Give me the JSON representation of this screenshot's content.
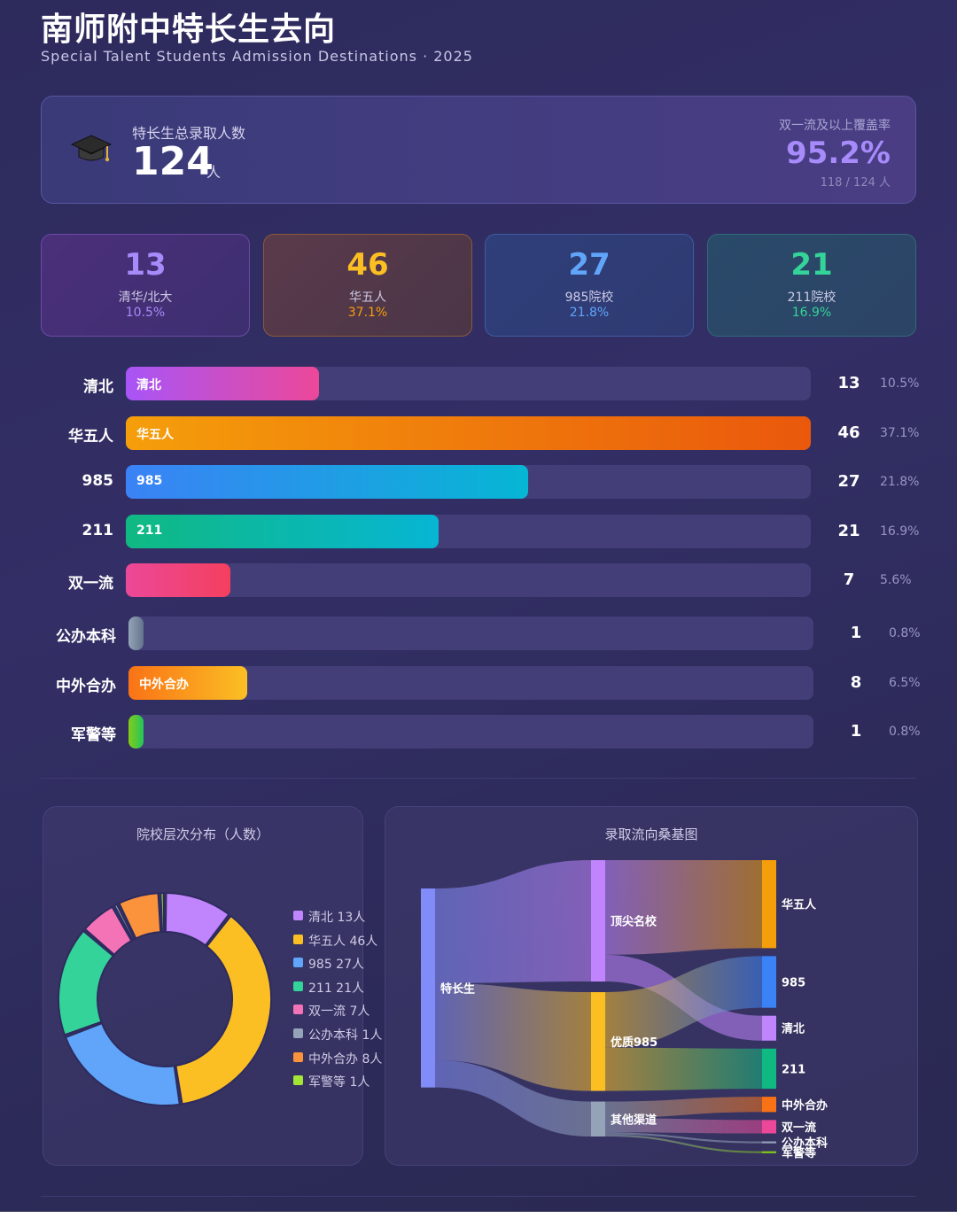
{
  "header": {
    "title": "南师附中特长生去向",
    "subtitle": "Special Talent Students Admission Destinations · 2025"
  },
  "summary": {
    "icon": "graduation-cap-icon",
    "total_label": "特长生总录取人数",
    "total_value": "124",
    "total_unit": "人",
    "coverage_label": "双一流及以上覆盖率",
    "coverage_value": "95.2%",
    "coverage_sub": "118 / 124 人"
  },
  "stats": [
    {
      "num": "13",
      "label": "清华/北大",
      "pct": "10.5%",
      "color": "#a78bfa"
    },
    {
      "num": "46",
      "label": "华五人",
      "pct": "37.1%",
      "color": "#fbbf24"
    },
    {
      "num": "27",
      "label": "985院校",
      "pct": "21.8%",
      "color": "#60a5fa"
    },
    {
      "num": "21",
      "label": "211院校",
      "pct": "16.9%",
      "color": "#34d399"
    }
  ],
  "chart_data": [
    {
      "type": "bar",
      "orientation": "horizontal",
      "categories": [
        "清北",
        "华五人",
        "985",
        "211",
        "双一流",
        "公办本科",
        "中外合办",
        "军警等"
      ],
      "inner_labels": [
        "清北",
        "华五人",
        "985",
        "211",
        "",
        "",
        "中外合办",
        ""
      ],
      "values": [
        13,
        46,
        27,
        21,
        7,
        1,
        8,
        1
      ],
      "percent_labels": [
        "10.5%",
        "37.1%",
        "21.8%",
        "16.9%",
        "5.6%",
        "0.8%",
        "6.5%",
        "0.8%"
      ],
      "xlim": [
        0,
        46
      ]
    },
    {
      "type": "pie",
      "style": "donut",
      "title": "院校层次分布（人数）",
      "legend_position": "right",
      "slices": [
        {
          "label": "清北",
          "value": 13,
          "legend": "清北  13人",
          "color": "#c084fc"
        },
        {
          "label": "华五人",
          "value": 46,
          "legend": "华五人  46人",
          "color": "#fbbf24"
        },
        {
          "label": "985",
          "value": 27,
          "legend": "985  27人",
          "color": "#60a5fa"
        },
        {
          "label": "211",
          "value": 21,
          "legend": "211  21人",
          "color": "#34d399"
        },
        {
          "label": "双一流",
          "value": 7,
          "legend": "双一流  7人",
          "color": "#f472b6"
        },
        {
          "label": "公办本科",
          "value": 1,
          "legend": "公办本科  1人",
          "color": "#94a3b8"
        },
        {
          "label": "中外合办",
          "value": 8,
          "legend": "中外合办  8人",
          "color": "#fb923c"
        },
        {
          "label": "军警等",
          "value": 1,
          "legend": "军警等  1人",
          "color": "#a3e635"
        }
      ]
    },
    {
      "type": "sankey",
      "title": "录取流向桑基图",
      "nodes": [
        {
          "id": "src",
          "label": "特长生",
          "color": "#818cf8"
        },
        {
          "id": "top",
          "label": "顶尖名校",
          "color": "#c084fc"
        },
        {
          "id": "good",
          "label": "优质985",
          "color": "#fbbf24"
        },
        {
          "id": "other",
          "label": "其他渠道",
          "color": "#94a3b8"
        },
        {
          "id": "h5",
          "label": "华五人",
          "color": "#f59e0b"
        },
        {
          "id": "n985",
          "label": "985",
          "color": "#3b82f6"
        },
        {
          "id": "qb",
          "label": "清北",
          "color": "#c084fc"
        },
        {
          "id": "n211",
          "label": "211",
          "color": "#10b981"
        },
        {
          "id": "zw",
          "label": "中外合办",
          "color": "#f97316"
        },
        {
          "id": "syl",
          "label": "双一流",
          "color": "#ec4899"
        },
        {
          "id": "gb",
          "label": "公办本科",
          "color": "#94a3b8"
        },
        {
          "id": "jj",
          "label": "军警等",
          "color": "#84cc16"
        }
      ],
      "links": [
        {
          "source": "src",
          "target": "top",
          "value": 59
        },
        {
          "source": "src",
          "target": "good",
          "value": 48
        },
        {
          "source": "src",
          "target": "other",
          "value": 17
        },
        {
          "source": "top",
          "target": "h5",
          "value": 46
        },
        {
          "source": "top",
          "target": "qb",
          "value": 13
        },
        {
          "source": "good",
          "target": "n985",
          "value": 27
        },
        {
          "source": "good",
          "target": "n211",
          "value": 21
        },
        {
          "source": "other",
          "target": "zw",
          "value": 8
        },
        {
          "source": "other",
          "target": "syl",
          "value": 7
        },
        {
          "source": "other",
          "target": "gb",
          "value": 1
        },
        {
          "source": "other",
          "target": "jj",
          "value": 1
        }
      ]
    }
  ]
}
